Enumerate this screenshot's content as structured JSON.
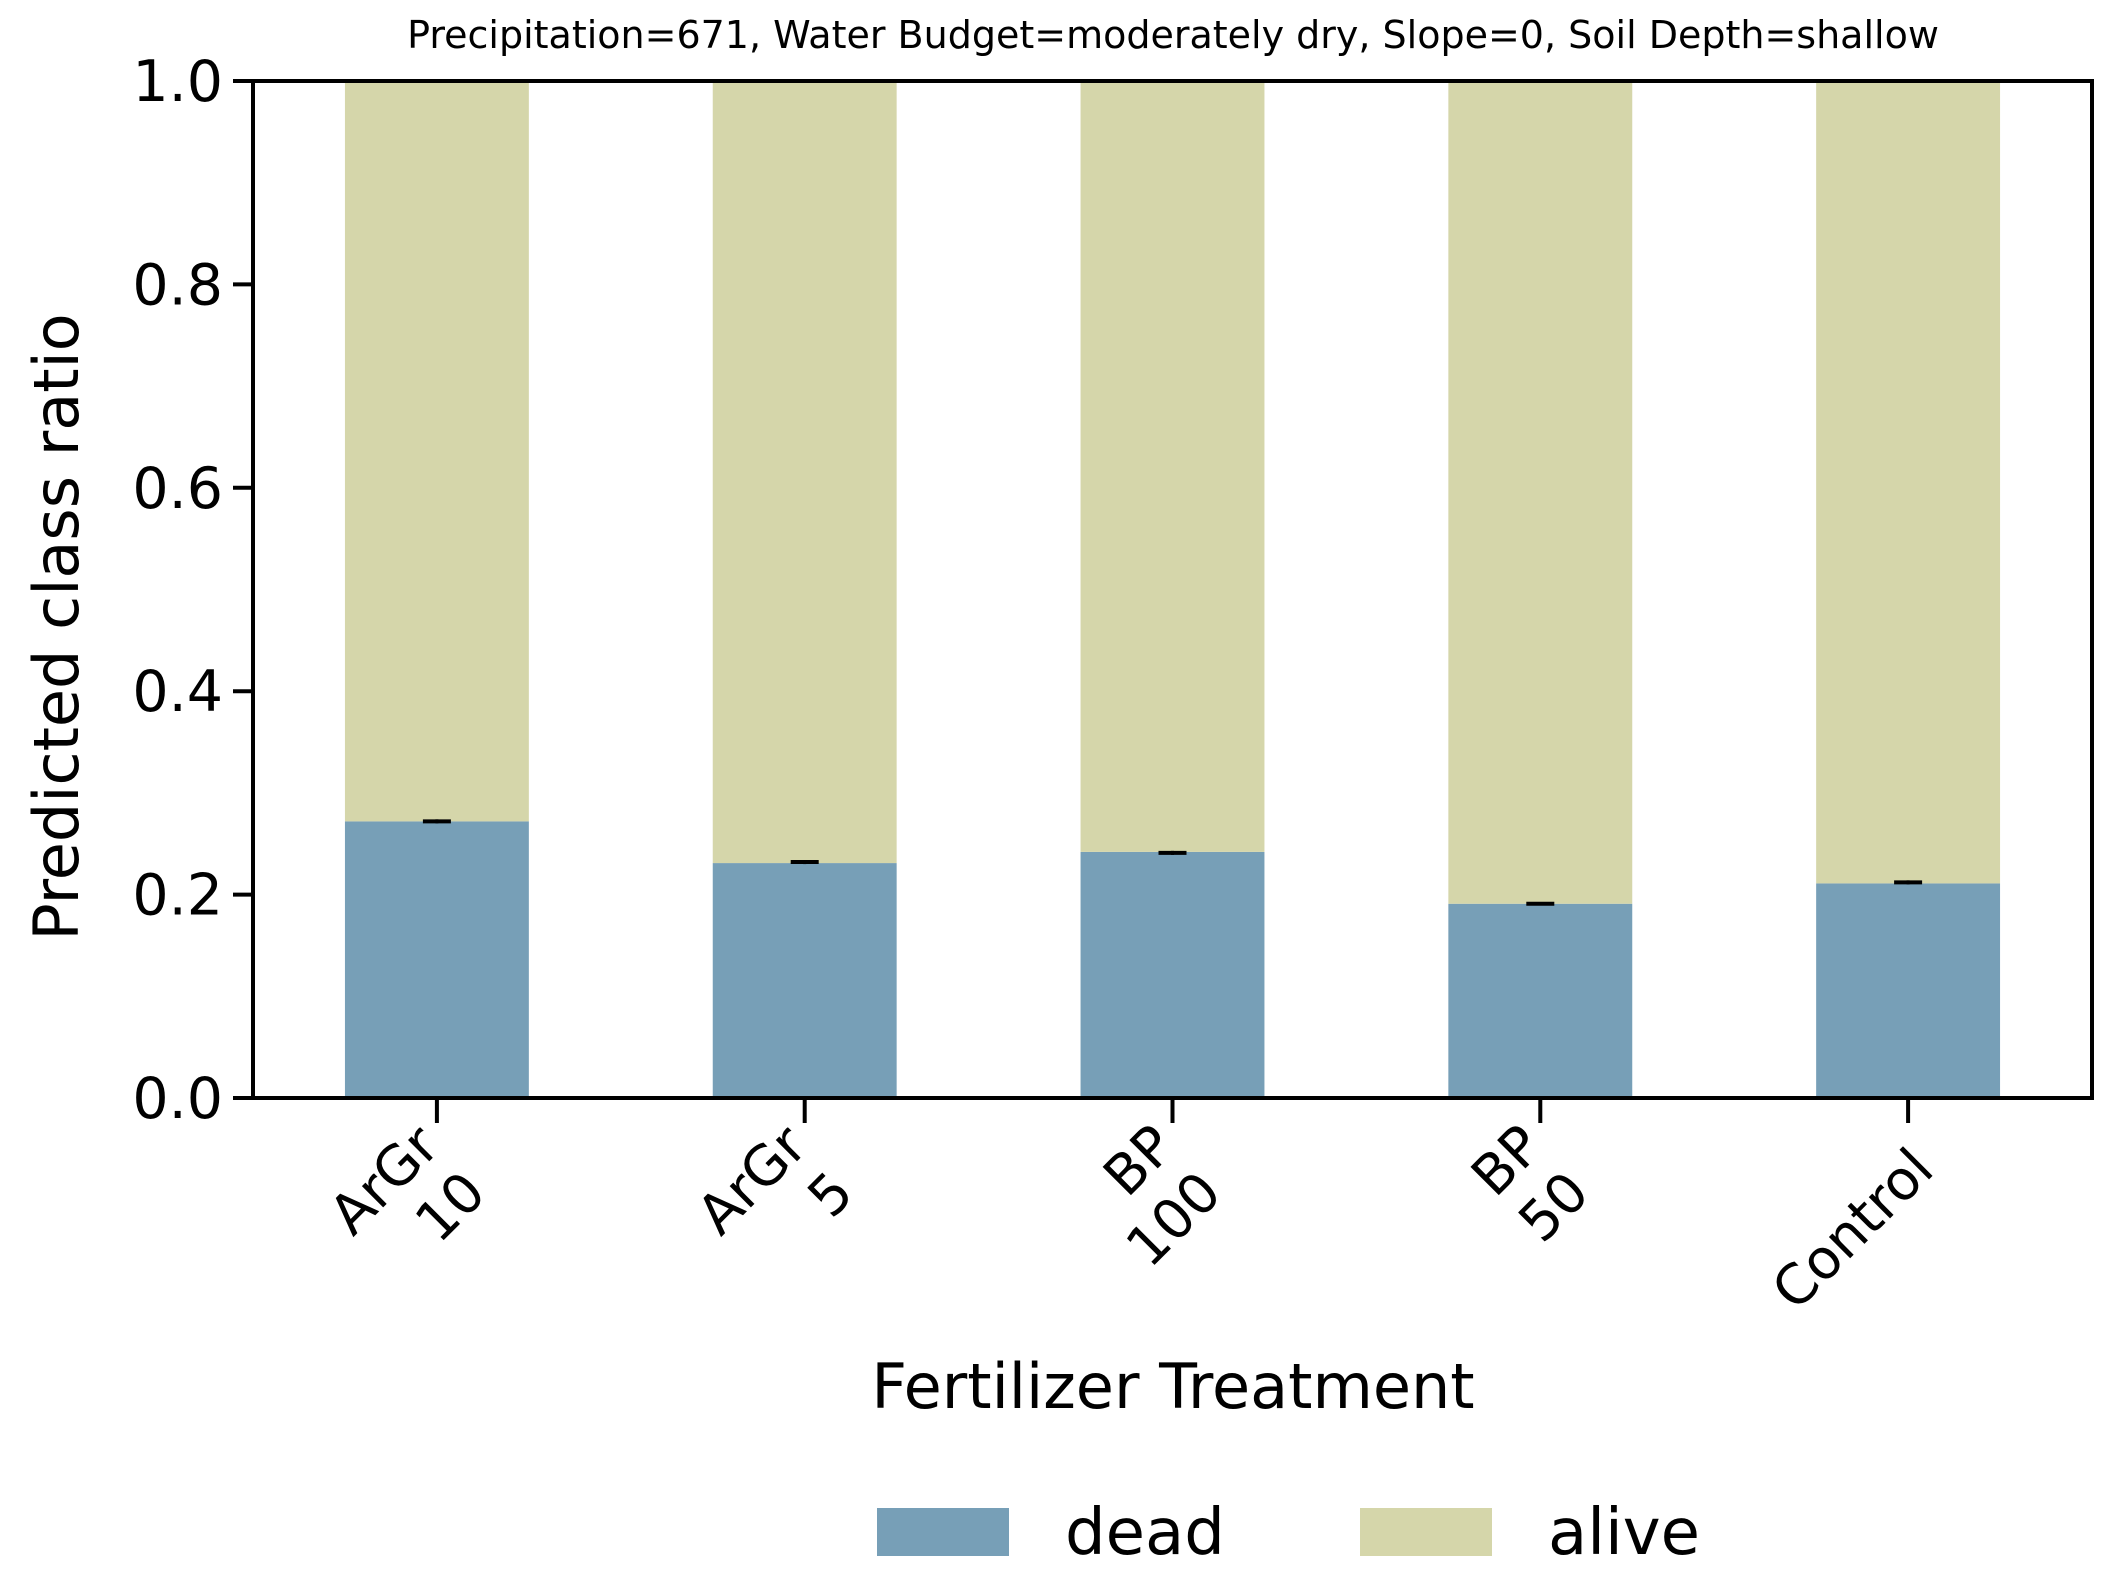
{
  "chart_data": {
    "type": "bar",
    "stacked": true,
    "title": "Precipitation=671, Water Budget=moderately dry, Slope=0, Soil Depth=shallow",
    "xlabel": "Fertilizer Treatment",
    "ylabel": "Predicted class ratio",
    "ylim": [
      0,
      1
    ],
    "yticks": [
      "0.0",
      "0.2",
      "0.4",
      "0.6",
      "0.8",
      "1.0"
    ],
    "categories": [
      [
        "ArGr",
        "10"
      ],
      [
        "ArGr",
        "5"
      ],
      [
        "BP",
        "100"
      ],
      [
        "BP",
        "50"
      ],
      [
        "Control"
      ]
    ],
    "series": [
      {
        "name": "dead",
        "color": "#779fb7",
        "values": [
          0.272,
          0.231,
          0.242,
          0.191,
          0.211
        ]
      },
      {
        "name": "alive",
        "color": "#d5d6aa",
        "values": [
          0.728,
          0.769,
          0.758,
          0.809,
          0.789
        ]
      }
    ],
    "error_bars": {
      "series": "dead",
      "center": [
        0.272,
        0.232,
        0.241,
        0.191,
        0.212
      ],
      "halfwidth": [
        0.002,
        0.002,
        0.002,
        0.001,
        0.002
      ]
    },
    "legend": {
      "placement": "bottom-center",
      "entries": [
        "dead",
        "alive"
      ]
    }
  }
}
